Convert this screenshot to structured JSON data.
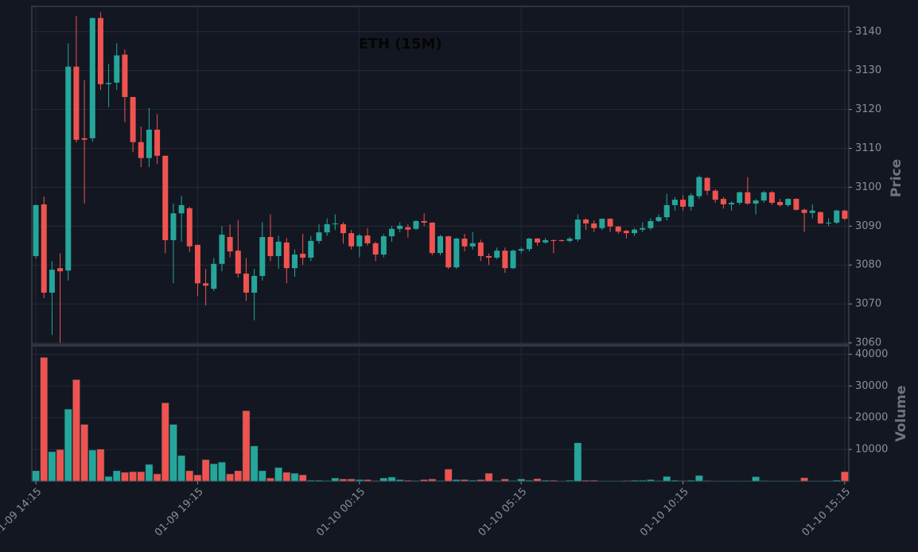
{
  "chart_data": [
    {
      "type": "candlestick",
      "title": "ETH (15M)",
      "ylabel": "Price",
      "up_color": "#26a69a",
      "down_color": "#ef5350",
      "ylim": [
        3059.6,
        3146.5
      ],
      "yticks": [
        3060,
        3070,
        3080,
        3090,
        3100,
        3110,
        3120,
        3130,
        3140
      ],
      "grid": true,
      "open": [
        3082.3,
        3095.6,
        3072.9,
        3079.2,
        3078.6,
        3131,
        3112.6,
        3112.6,
        3143.5,
        3126.5,
        3126.9,
        3134.1,
        3123.2,
        3111.6,
        3107.5,
        3114.8,
        3108.1,
        3086.4,
        3093.3,
        3094.6,
        3085.2,
        3075.3,
        3073.9,
        3080.3,
        3087.2,
        3083.7,
        3077.8,
        3072.9,
        3077.2,
        3087.2,
        3082.3,
        3085.8,
        3079.2,
        3082.9,
        3081.9,
        3086.2,
        3088.4,
        3090.5,
        3090.5,
        3088.2,
        3084.8,
        3087.6,
        3085.6,
        3082.7,
        3087.4,
        3089.3,
        3089.7,
        3089.3,
        3091.3,
        3090.9,
        3083.1,
        3087.4,
        3079.4,
        3086.8,
        3084.8,
        3085.8,
        3082.3,
        3081.9,
        3083.7,
        3079.2,
        3083.7,
        3084.1,
        3086.8,
        3085.8,
        3086.4,
        3086.4,
        3086.2,
        3086.6,
        3091.7,
        3090.7,
        3089.5,
        3091.9,
        3089.9,
        3088.8,
        3088.2,
        3089.1,
        3089.5,
        3091.3,
        3092.3,
        3095.4,
        3096.8,
        3095,
        3097.7,
        3102.4,
        3099.1,
        3097,
        3095.6,
        3096,
        3098.7,
        3095.8,
        3096.6,
        3098.7,
        3096.2,
        3095.4,
        3097,
        3094.2,
        3093.4,
        3093.6,
        3090.7,
        3090.9,
        3094
      ],
      "high": [
        3095.6,
        3097.6,
        3081,
        3083,
        3137,
        3144,
        3127.5,
        3143.5,
        3145,
        3131.7,
        3137,
        3135.4,
        3123.2,
        3115.6,
        3120.4,
        3118.8,
        3108.1,
        3095.8,
        3097.8,
        3095,
        3085.2,
        3079,
        3081.8,
        3090,
        3090.4,
        3091.6,
        3081.8,
        3079,
        3091,
        3093,
        3087.5,
        3087,
        3084,
        3088,
        3087.5,
        3090.5,
        3092,
        3093,
        3091,
        3089,
        3088,
        3089.5,
        3086,
        3088,
        3090,
        3091,
        3090.5,
        3091.5,
        3093.3,
        3091,
        3087.8,
        3087.5,
        3087,
        3088,
        3088.5,
        3086.5,
        3083,
        3084.5,
        3084.5,
        3084,
        3084.5,
        3087,
        3087,
        3087,
        3086.6,
        3086.6,
        3087.2,
        3093,
        3092,
        3091.5,
        3092,
        3092,
        3090,
        3089,
        3089.5,
        3091,
        3092,
        3093,
        3098.3,
        3097.5,
        3098,
        3098.5,
        3103,
        3102.6,
        3099.5,
        3097.5,
        3096.4,
        3098.9,
        3102.6,
        3097,
        3099,
        3099,
        3097,
        3097.2,
        3097.2,
        3094.5,
        3095.6,
        3093.8,
        3092,
        3094.2,
        3094.2
      ],
      "low": [
        3081.7,
        3071.5,
        3062,
        3060,
        3076,
        3111.5,
        3095.8,
        3111.7,
        3125,
        3120.6,
        3125,
        3116.7,
        3109,
        3105.2,
        3105.2,
        3106,
        3083,
        3075.3,
        3086,
        3083.4,
        3072,
        3069.6,
        3073.3,
        3078.4,
        3082,
        3076.8,
        3070.8,
        3065.8,
        3076,
        3081,
        3079,
        3075.3,
        3077,
        3080,
        3081,
        3085.5,
        3087.5,
        3089,
        3085.5,
        3084,
        3082,
        3085,
        3081,
        3082,
        3086,
        3088.5,
        3087,
        3089,
        3090,
        3082.5,
        3082.5,
        3079,
        3079,
        3083.5,
        3084,
        3081,
        3080,
        3081.5,
        3078,
        3079,
        3083,
        3083.5,
        3085,
        3085.5,
        3083,
        3086,
        3085.8,
        3086,
        3089,
        3088.5,
        3089,
        3088.5,
        3088,
        3086.8,
        3087.5,
        3088.5,
        3089,
        3091,
        3091.5,
        3094,
        3094,
        3094,
        3097,
        3098,
        3096,
        3094.5,
        3094,
        3095.5,
        3095.5,
        3093,
        3096,
        3095.5,
        3095,
        3095,
        3094,
        3088.5,
        3092,
        3090.5,
        3090,
        3090.5,
        3091.5
      ],
      "close": [
        3095.4,
        3072.9,
        3078.8,
        3078.4,
        3131,
        3112.2,
        3112.2,
        3143.5,
        3126.5,
        3126.8,
        3133.9,
        3123.2,
        3111.6,
        3107.5,
        3114.8,
        3108.1,
        3086.4,
        3093.3,
        3095.4,
        3084.8,
        3075.3,
        3074.7,
        3080.3,
        3087.8,
        3083.5,
        3077.8,
        3072.9,
        3077.2,
        3087.2,
        3082.3,
        3086,
        3079.2,
        3082.7,
        3081.9,
        3086.2,
        3088.4,
        3090.5,
        3090.7,
        3088.2,
        3084.8,
        3087.6,
        3085.6,
        3082.7,
        3087.4,
        3089.3,
        3090.1,
        3089.1,
        3091.3,
        3090.9,
        3083.1,
        3087.4,
        3079.4,
        3086.8,
        3084.8,
        3085.6,
        3082.3,
        3081.9,
        3083.7,
        3079.2,
        3083.7,
        3084.1,
        3086.8,
        3085.8,
        3086.4,
        3086.2,
        3086.2,
        3086.8,
        3091.7,
        3090.7,
        3089.5,
        3091.9,
        3089.9,
        3088.6,
        3088.2,
        3089.1,
        3089.5,
        3091.3,
        3092.3,
        3095.4,
        3096.8,
        3095,
        3097.9,
        3102.6,
        3099.1,
        3096.8,
        3095.6,
        3096,
        3098.7,
        3095.8,
        3096.6,
        3098.7,
        3096,
        3095.4,
        3097,
        3094.2,
        3093.4,
        3094,
        3090.7,
        3090.9,
        3094,
        3091.9
      ]
    },
    {
      "type": "bar",
      "ylabel": "Volume",
      "ylim": [
        0,
        42600
      ],
      "yticks": [
        10000,
        20000,
        30000,
        40000
      ],
      "grid": true,
      "categories": [
        "01-09 14:15",
        null,
        null,
        null,
        null,
        null,
        null,
        null,
        null,
        null,
        null,
        null,
        null,
        null,
        null,
        null,
        null,
        null,
        null,
        null,
        "01-09 19:15",
        null,
        null,
        null,
        null,
        null,
        null,
        null,
        null,
        null,
        null,
        null,
        null,
        null,
        null,
        null,
        null,
        null,
        null,
        null,
        "01-10 00:15",
        null,
        null,
        null,
        null,
        null,
        null,
        null,
        null,
        null,
        null,
        null,
        null,
        null,
        null,
        null,
        null,
        null,
        null,
        null,
        "01-10 05:15",
        null,
        null,
        null,
        null,
        null,
        null,
        null,
        null,
        null,
        null,
        null,
        null,
        null,
        null,
        null,
        null,
        null,
        null,
        null,
        "01-10 10:15",
        null,
        null,
        null,
        null,
        null,
        null,
        null,
        null,
        null,
        null,
        null,
        null,
        null,
        null,
        null,
        null,
        null,
        null,
        null,
        "01-10 15:15"
      ],
      "values": [
        3300,
        39000,
        9300,
        10000,
        22700,
        32000,
        17900,
        9800,
        10100,
        1500,
        3300,
        2800,
        3000,
        3000,
        5300,
        2300,
        24700,
        17900,
        8100,
        3300,
        2000,
        6800,
        5500,
        6000,
        2300,
        3300,
        22200,
        11100,
        3300,
        1000,
        4300,
        2800,
        2500,
        2000,
        300,
        300,
        200,
        1000,
        700,
        700,
        500,
        500,
        200,
        1000,
        1300,
        500,
        300,
        200,
        500,
        700,
        200,
        3800,
        500,
        500,
        300,
        500,
        2500,
        200,
        700,
        200,
        700,
        300,
        800,
        300,
        300,
        100,
        300,
        12100,
        300,
        300,
        100,
        100,
        100,
        200,
        300,
        300,
        500,
        200,
        1500,
        300,
        200,
        300,
        1800,
        200,
        100,
        100,
        100,
        100,
        100,
        1400,
        200,
        100,
        100,
        100,
        100,
        1100,
        100,
        100,
        100,
        300,
        3000
      ]
    }
  ]
}
